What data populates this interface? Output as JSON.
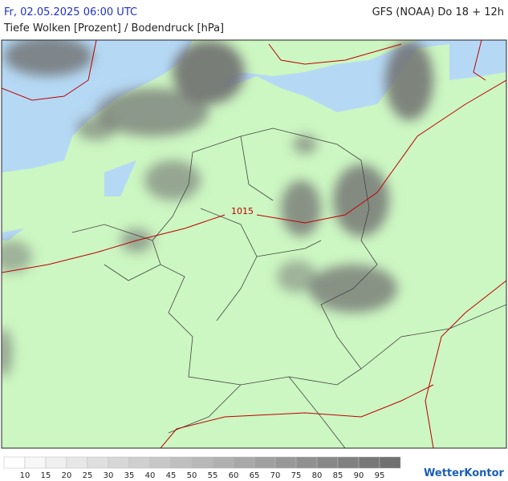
{
  "header": {
    "valid_time": "Fr, 02.05.2025 06:00 UTC",
    "model_run": "GFS (NOAA) Do 18 + 12h",
    "title": "Tiefe Wolken [Prozent] / Bodendruck [hPa]"
  },
  "map": {
    "isobar_labels": [
      "1015"
    ]
  },
  "legend": {
    "values": [
      10,
      15,
      20,
      25,
      30,
      35,
      40,
      45,
      50,
      55,
      60,
      65,
      70,
      75,
      80,
      85,
      90,
      95
    ]
  },
  "logo": "WetterKontor"
}
